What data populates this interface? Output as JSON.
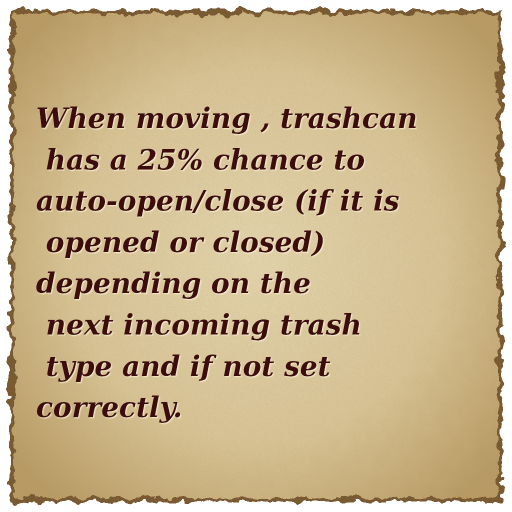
{
  "card": {
    "lines": [
      "When moving , trashcan",
      " has a 25% chance to",
      "auto-open/close (if it is",
      " opened or closed)",
      "depending on the",
      " next incoming trash",
      " type and if not set",
      "correctly."
    ]
  }
}
